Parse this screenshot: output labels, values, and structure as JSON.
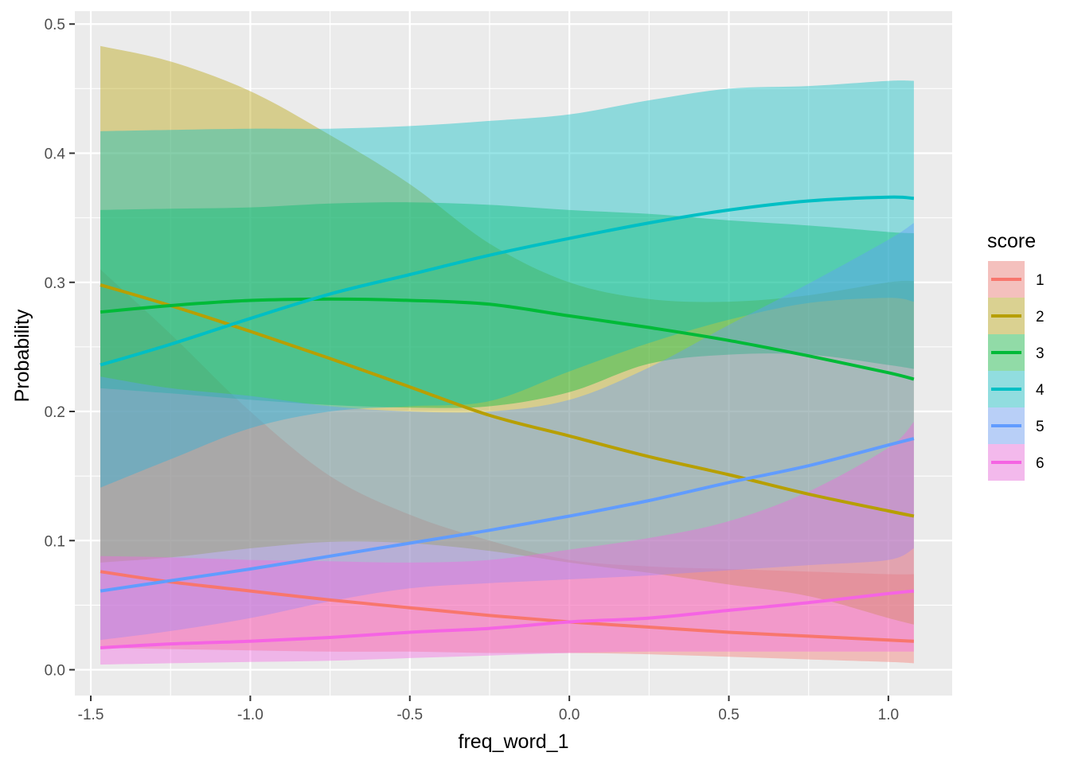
{
  "chart_data": {
    "type": "line",
    "xlabel": "freq_word_1",
    "ylabel": "Probability",
    "xlim": [
      -1.55,
      1.2
    ],
    "ylim": [
      -0.02,
      0.51
    ],
    "xticks": [
      -1.5,
      -1.0,
      -0.5,
      0.0,
      0.5,
      1.0
    ],
    "xtick_labels": [
      "-1.5",
      "-1.0",
      "-0.5",
      "0.0",
      "0.5",
      "1.0"
    ],
    "yticks": [
      0.0,
      0.1,
      0.2,
      0.3,
      0.4,
      0.5
    ],
    "ytick_labels": [
      "0.0",
      "0.1",
      "0.2",
      "0.3",
      "0.4",
      "0.5"
    ],
    "grid": true,
    "legend": {
      "title": "score",
      "placement": "right"
    },
    "x": [
      -1.47,
      -1.25,
      -1.0,
      -0.75,
      -0.5,
      -0.25,
      0.0,
      0.25,
      0.5,
      0.75,
      1.0,
      1.08
    ],
    "series": [
      {
        "name": "1",
        "color": "#F8766D",
        "values": [
          0.076,
          0.068,
          0.061,
          0.054,
          0.048,
          0.042,
          0.037,
          0.033,
          0.029,
          0.026,
          0.023,
          0.022
        ],
        "lower": [
          0.017,
          0.016,
          0.015,
          0.014,
          0.014,
          0.013,
          0.013,
          0.012,
          0.01,
          0.008,
          0.006,
          0.005
        ],
        "upper": [
          0.31,
          0.26,
          0.2,
          0.15,
          0.12,
          0.1,
          0.085,
          0.08,
          0.078,
          0.076,
          0.074,
          0.074
        ]
      },
      {
        "name": "2",
        "color": "#B79F00",
        "values": [
          0.298,
          0.282,
          0.262,
          0.241,
          0.219,
          0.197,
          0.181,
          0.165,
          0.151,
          0.136,
          0.123,
          0.119
        ],
        "lower": [
          0.083,
          0.087,
          0.094,
          0.099,
          0.098,
          0.092,
          0.083,
          0.075,
          0.066,
          0.057,
          0.04,
          0.035
        ],
        "upper": [
          0.483,
          0.471,
          0.448,
          0.414,
          0.376,
          0.33,
          0.3,
          0.287,
          0.285,
          0.29,
          0.3,
          0.301
        ]
      },
      {
        "name": "3",
        "color": "#00BA38",
        "values": [
          0.277,
          0.282,
          0.286,
          0.287,
          0.286,
          0.283,
          0.274,
          0.265,
          0.255,
          0.243,
          0.23,
          0.225
        ],
        "lower": [
          0.218,
          0.214,
          0.209,
          0.205,
          0.203,
          0.204,
          0.215,
          0.237,
          0.244,
          0.244,
          0.236,
          0.233
        ],
        "upper": [
          0.356,
          0.357,
          0.358,
          0.361,
          0.362,
          0.36,
          0.356,
          0.353,
          0.348,
          0.344,
          0.339,
          0.338
        ]
      },
      {
        "name": "4",
        "color": "#00BFC4",
        "values": [
          0.236,
          0.252,
          0.272,
          0.291,
          0.306,
          0.321,
          0.334,
          0.346,
          0.356,
          0.363,
          0.366,
          0.365
        ],
        "lower": [
          0.141,
          0.163,
          0.187,
          0.2,
          0.204,
          0.208,
          0.231,
          0.253,
          0.271,
          0.284,
          0.288,
          0.285
        ],
        "upper": [
          0.417,
          0.418,
          0.419,
          0.419,
          0.421,
          0.425,
          0.43,
          0.441,
          0.45,
          0.452,
          0.456,
          0.456
        ]
      },
      {
        "name": "5",
        "color": "#619CFF",
        "values": [
          0.061,
          0.069,
          0.078,
          0.088,
          0.098,
          0.108,
          0.119,
          0.131,
          0.145,
          0.158,
          0.174,
          0.179
        ],
        "lower": [
          0.023,
          0.03,
          0.04,
          0.053,
          0.063,
          0.067,
          0.07,
          0.073,
          0.077,
          0.081,
          0.085,
          0.094
        ],
        "upper": [
          0.227,
          0.218,
          0.212,
          0.204,
          0.2,
          0.2,
          0.209,
          0.234,
          0.267,
          0.299,
          0.333,
          0.346
        ]
      },
      {
        "name": "6",
        "color": "#F564E3",
        "values": [
          0.017,
          0.02,
          0.022,
          0.025,
          0.029,
          0.032,
          0.037,
          0.04,
          0.046,
          0.052,
          0.059,
          0.061
        ],
        "lower": [
          0.004,
          0.005,
          0.006,
          0.007,
          0.009,
          0.011,
          0.013,
          0.014,
          0.014,
          0.014,
          0.014,
          0.014
        ],
        "upper": [
          0.088,
          0.087,
          0.085,
          0.084,
          0.083,
          0.085,
          0.093,
          0.102,
          0.115,
          0.138,
          0.172,
          0.192
        ]
      }
    ]
  }
}
